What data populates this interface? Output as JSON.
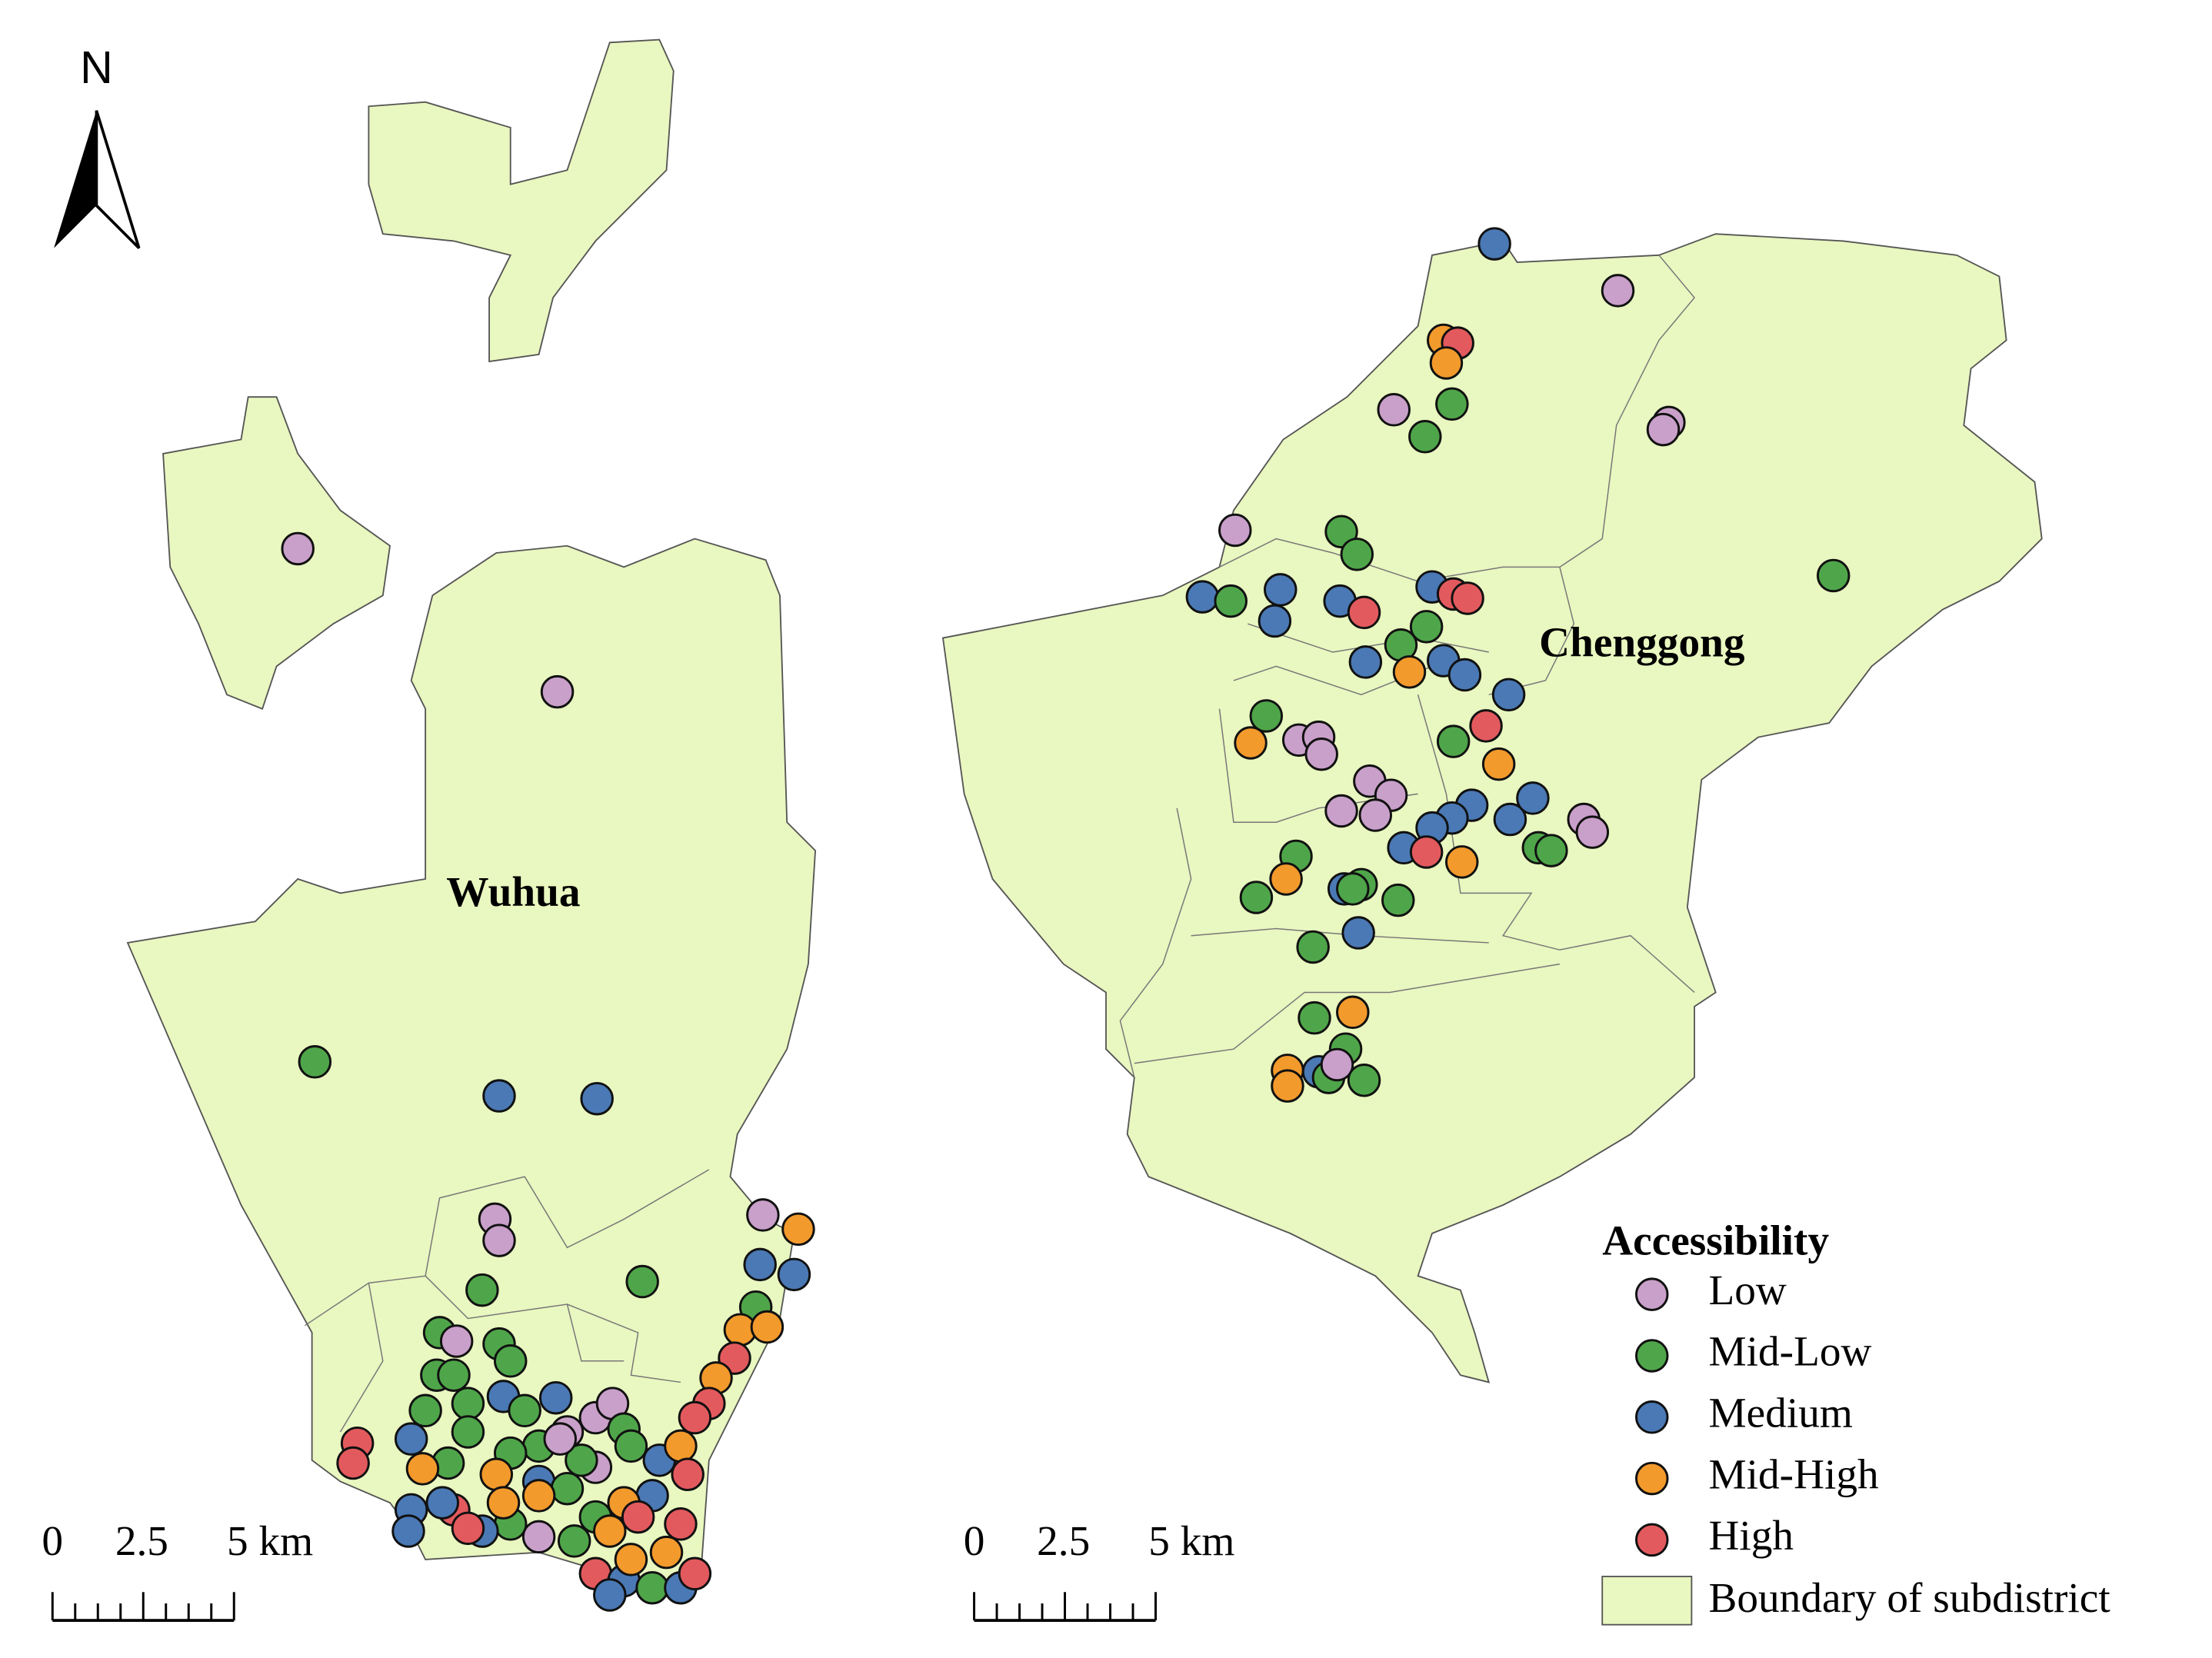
{
  "north_arrow": {
    "label": "N"
  },
  "districts": [
    {
      "label": "Wuhua"
    },
    {
      "label": "Chenggong"
    }
  ],
  "legend": {
    "title": "Accessibility",
    "items": [
      {
        "label": "Low",
        "color": "#c9a0c9"
      },
      {
        "label": "Mid-Low",
        "color": "#4fa64a"
      },
      {
        "label": "Medium",
        "color": "#4a79b5"
      },
      {
        "label": "Mid-High",
        "color": "#f39a2c"
      },
      {
        "label": "High",
        "color": "#e35a5e"
      }
    ],
    "boundary": {
      "label": "Boundary of subdistrict",
      "color": "#e9f7c0"
    }
  },
  "scale_bars": [
    {
      "labels": [
        "0",
        "2.5",
        "5 km"
      ]
    },
    {
      "labels": [
        "0",
        "2.5",
        "5 km"
      ]
    }
  ]
}
